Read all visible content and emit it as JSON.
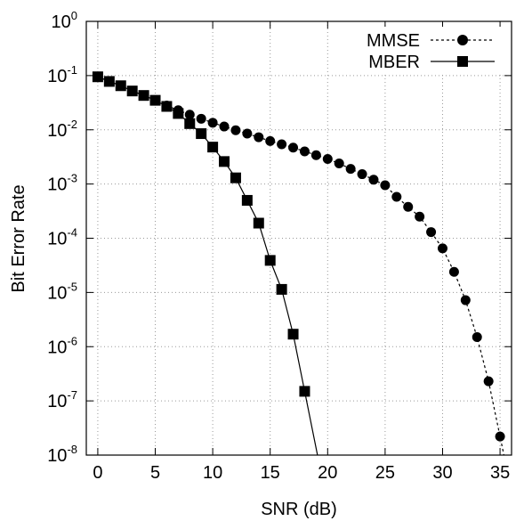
{
  "chart_data": {
    "type": "line",
    "xlabel": "SNR (dB)",
    "ylabel": "Bit Error Rate",
    "xlim": [
      -1,
      36
    ],
    "ylim_exponent": [
      -8,
      0
    ],
    "yscale": "log",
    "grid": true,
    "legend_position": "top-right",
    "x_ticks": [
      0,
      5,
      10,
      15,
      20,
      25,
      30,
      35
    ],
    "y_ticks": [
      {
        "base": "10",
        "exp": "0",
        "value": 1
      },
      {
        "base": "10",
        "exp": "-1",
        "value": 0.1
      },
      {
        "base": "10",
        "exp": "-2",
        "value": 0.01
      },
      {
        "base": "10",
        "exp": "-3",
        "value": 0.001
      },
      {
        "base": "10",
        "exp": "-4",
        "value": 0.0001
      },
      {
        "base": "10",
        "exp": "-5",
        "value": 1e-05
      },
      {
        "base": "10",
        "exp": "-6",
        "value": 1e-06
      },
      {
        "base": "10",
        "exp": "-7",
        "value": 1e-07
      },
      {
        "base": "10",
        "exp": "-8",
        "value": 1e-08
      }
    ],
    "series": [
      {
        "name": "MMSE",
        "marker": "circle",
        "dash": "dashed",
        "color": "#000000",
        "x": [
          0,
          1,
          2,
          3,
          4,
          5,
          6,
          7,
          8,
          9,
          10,
          11,
          12,
          13,
          14,
          15,
          16,
          17,
          18,
          19,
          20,
          21,
          22,
          23,
          24,
          25,
          26,
          27,
          28,
          29,
          30,
          31,
          32,
          33,
          34,
          35
        ],
        "y": [
          0.095,
          0.078,
          0.065,
          0.052,
          0.043,
          0.035,
          0.028,
          0.023,
          0.019,
          0.016,
          0.0135,
          0.0115,
          0.0098,
          0.0085,
          0.0073,
          0.0062,
          0.0054,
          0.0047,
          0.004,
          0.0034,
          0.0029,
          0.0024,
          0.0019,
          0.00152,
          0.0012,
          0.00095,
          0.00058,
          0.00038,
          0.00025,
          0.00013,
          6.5e-05,
          2.4e-05,
          7.2e-06,
          1.5e-06,
          2.3e-07,
          2.2e-08
        ]
      },
      {
        "name": "MBER",
        "marker": "square",
        "dash": "solid",
        "color": "#000000",
        "x": [
          0,
          1,
          2,
          3,
          4,
          5,
          6,
          7,
          8,
          9,
          10,
          11,
          12,
          13,
          14,
          15,
          16,
          17,
          18
        ],
        "y": [
          0.095,
          0.078,
          0.065,
          0.052,
          0.043,
          0.035,
          0.027,
          0.02,
          0.013,
          0.0085,
          0.0048,
          0.0026,
          0.0013,
          0.0005,
          0.00019,
          3.9e-05,
          1.14e-05,
          1.7e-06,
          1.5e-07
        ]
      }
    ]
  }
}
